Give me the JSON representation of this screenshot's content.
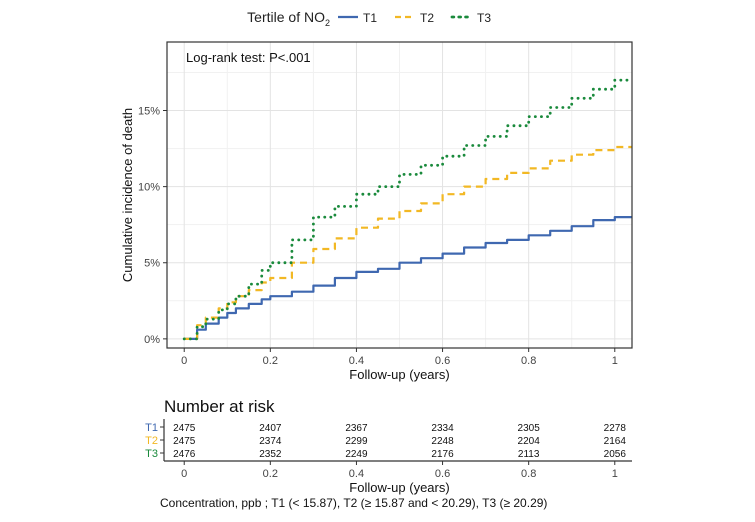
{
  "legend": {
    "title_prefix": "Tertile of NO",
    "title_subscript": "2",
    "items": [
      {
        "label": "T1",
        "color": "#3F68B0",
        "style": "solid"
      },
      {
        "label": "T2",
        "color": "#F2B824",
        "style": "dashed"
      },
      {
        "label": "T3",
        "color": "#1A8A3C",
        "style": "dotted"
      }
    ]
  },
  "annotation": "Log-rank test: P<.001",
  "risk_table": {
    "title": "Number at risk",
    "rows": [
      {
        "label": "T1",
        "color": "#3F68B0",
        "values": [
          "2475",
          "2407",
          "2367",
          "2334",
          "2305",
          "2278"
        ]
      },
      {
        "label": "T2",
        "color": "#F2B824",
        "values": [
          "2475",
          "2374",
          "2299",
          "2248",
          "2204",
          "2164"
        ]
      },
      {
        "label": "T3",
        "color": "#1A8A3C",
        "values": [
          "2476",
          "2352",
          "2249",
          "2176",
          "2113",
          "2056"
        ]
      }
    ],
    "x_ticks": [
      0,
      0.2,
      0.4,
      0.6,
      0.8,
      1
    ],
    "x_tick_labels": [
      "0",
      "0.2",
      "0.4",
      "0.6",
      "0.8",
      "1"
    ],
    "xlabel": "Follow-up (years)"
  },
  "footnote": "Concentration, ppb ; T1 (< 15.87), T2 (≥ 15.87 and < 20.29), T3 (≥ 20.29)",
  "chart_data": {
    "type": "line",
    "title": "",
    "xlabel": "Follow-up (years)",
    "ylabel": "Cumulative incidence of death",
    "xlim": [
      -0.04,
      1.04
    ],
    "ylim": [
      -0.6,
      19.5
    ],
    "x_ticks": [
      0,
      0.2,
      0.4,
      0.6,
      0.8,
      1
    ],
    "x_tick_labels": [
      "0",
      "0.2",
      "0.4",
      "0.6",
      "0.8",
      "1"
    ],
    "y_ticks": [
      0,
      5,
      10,
      15
    ],
    "y_tick_labels": [
      "0%",
      "5%",
      "10%",
      "15%"
    ],
    "grid": true,
    "legend_position": "top",
    "series": [
      {
        "name": "T1",
        "color": "#3F68B0",
        "dash": "solid",
        "x": [
          0,
          0.03,
          0.05,
          0.08,
          0.1,
          0.12,
          0.15,
          0.18,
          0.2,
          0.25,
          0.3,
          0.35,
          0.4,
          0.45,
          0.5,
          0.55,
          0.6,
          0.65,
          0.7,
          0.75,
          0.8,
          0.85,
          0.9,
          0.95,
          1.0,
          1.04
        ],
        "y": [
          0,
          0.6,
          1.0,
          1.4,
          1.7,
          2.0,
          2.3,
          2.6,
          2.8,
          3.1,
          3.5,
          4.0,
          4.4,
          4.6,
          5.0,
          5.3,
          5.6,
          6.0,
          6.3,
          6.5,
          6.8,
          7.1,
          7.4,
          7.8,
          8.0,
          8.0
        ]
      },
      {
        "name": "T2",
        "color": "#F2B824",
        "dash": "dashed",
        "x": [
          0,
          0.03,
          0.05,
          0.08,
          0.1,
          0.12,
          0.15,
          0.18,
          0.2,
          0.25,
          0.3,
          0.35,
          0.4,
          0.45,
          0.5,
          0.55,
          0.6,
          0.65,
          0.7,
          0.75,
          0.8,
          0.85,
          0.9,
          0.95,
          1.0,
          1.04
        ],
        "y": [
          0,
          0.9,
          1.4,
          2.0,
          2.4,
          2.8,
          3.2,
          3.7,
          4.0,
          5.0,
          5.9,
          6.6,
          7.3,
          7.9,
          8.4,
          8.9,
          9.5,
          10.0,
          10.5,
          10.9,
          11.2,
          11.7,
          12.1,
          12.4,
          12.6,
          12.6
        ]
      },
      {
        "name": "T3",
        "color": "#1A8A3C",
        "dash": "dotted",
        "x": [
          0,
          0.03,
          0.05,
          0.08,
          0.1,
          0.12,
          0.15,
          0.18,
          0.2,
          0.25,
          0.3,
          0.35,
          0.4,
          0.45,
          0.5,
          0.55,
          0.6,
          0.65,
          0.7,
          0.75,
          0.8,
          0.85,
          0.9,
          0.95,
          1.0,
          1.04
        ],
        "y": [
          0,
          0.8,
          1.3,
          1.9,
          2.3,
          2.8,
          3.6,
          4.5,
          5.0,
          6.5,
          8.0,
          8.7,
          9.5,
          10.0,
          10.8,
          11.4,
          12.0,
          12.7,
          13.3,
          14.0,
          14.6,
          15.2,
          15.8,
          16.4,
          17.0,
          17.0
        ]
      }
    ]
  }
}
